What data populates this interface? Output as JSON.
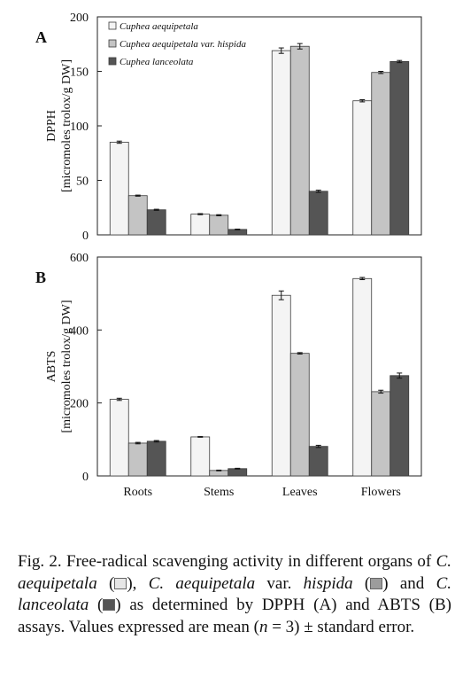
{
  "chart_data": [
    {
      "type": "bar",
      "panel_label": "A",
      "ylabel_lines": [
        "DPPH",
        "[micromoles trolox/g DW]"
      ],
      "ylim": [
        0,
        200
      ],
      "yticks": [
        0,
        50,
        100,
        150,
        200
      ],
      "categories": [
        "Roots",
        "Stems",
        "Leaves",
        "Flowers"
      ],
      "legend_position": "top-left",
      "series": [
        {
          "name": "Cuphea aequipetala",
          "color": "#f4f4f4",
          "values": [
            85,
            19,
            169,
            123
          ],
          "errors": [
            1,
            0.5,
            2.5,
            1
          ]
        },
        {
          "name": "Cuphea aequipetala var. hispida",
          "color": "#c4c4c4",
          "values": [
            36,
            18,
            173,
            149
          ],
          "errors": [
            0.5,
            0.5,
            2.5,
            1
          ]
        },
        {
          "name": "Cuphea lanceolata",
          "color": "#555555",
          "values": [
            23,
            5,
            40,
            159
          ],
          "errors": [
            0.5,
            0.3,
            1,
            1
          ]
        }
      ]
    },
    {
      "type": "bar",
      "panel_label": "B",
      "ylabel_lines": [
        "ABTS",
        "[micromoles trolox/g DW]"
      ],
      "ylim": [
        0,
        600
      ],
      "yticks": [
        0,
        200,
        400,
        600
      ],
      "categories": [
        "Roots",
        "Stems",
        "Leaves",
        "Flowers"
      ],
      "series": [
        {
          "name": "Cuphea aequipetala",
          "color": "#f4f4f4",
          "values": [
            210,
            107,
            495,
            541
          ],
          "errors": [
            3,
            1,
            12,
            3
          ]
        },
        {
          "name": "Cuphea aequipetala var. hispida",
          "color": "#c4c4c4",
          "values": [
            90,
            15,
            336,
            231
          ],
          "errors": [
            2,
            1,
            2,
            4
          ]
        },
        {
          "name": "Cuphea lanceolata",
          "color": "#555555",
          "values": [
            95,
            20,
            81,
            275
          ],
          "errors": [
            2,
            1,
            3,
            7
          ]
        }
      ]
    }
  ],
  "caption": {
    "t1": "Fig. 2. Free-radical scavenging activity in different organs of ",
    "sp1": "C. aequipetala",
    "t2": " (",
    "t3": "), ",
    "sp2": "C. aequipetala",
    "t4": " var. ",
    "var": "hispida",
    "t5": " (",
    "t6": ") and ",
    "sp3": "C. lanceolata",
    "t7": " (",
    "t8": ") as determined by DPPH (A) and ABTS (B) assays.  Values expressed are mean (",
    "n": "n",
    "t9": " = 3) ± standard error."
  }
}
